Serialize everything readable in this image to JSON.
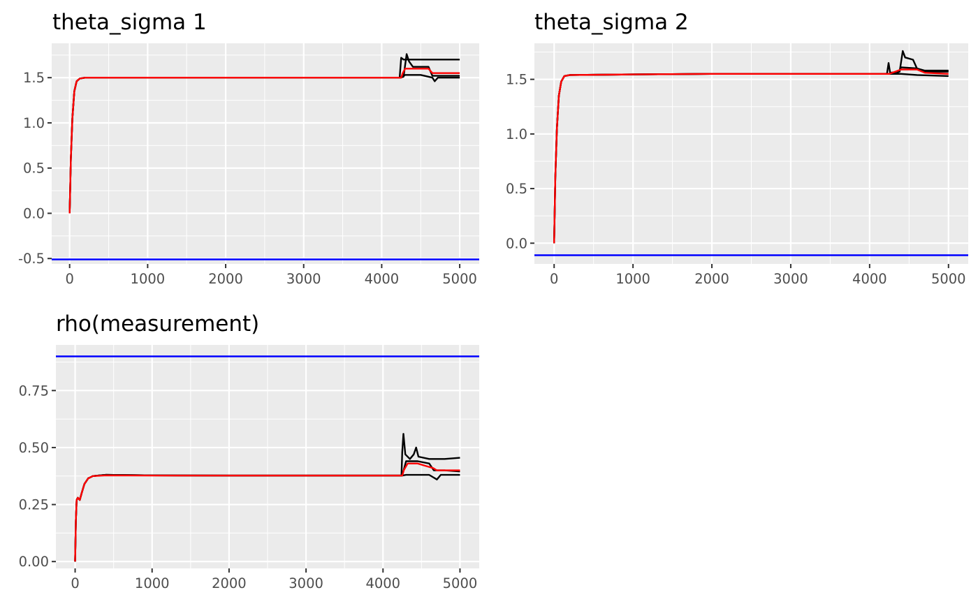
{
  "chart_data": [
    {
      "type": "line",
      "title": "theta_sigma 1",
      "xlabel": "",
      "ylabel": "",
      "xlim": [
        -230,
        5250
      ],
      "ylim": [
        -0.56,
        1.88
      ],
      "x_ticks": [
        0,
        1000,
        2000,
        3000,
        4000,
        5000
      ],
      "x_tick_labels": [
        "0",
        "1000",
        "2000",
        "3000",
        "4000",
        "5000"
      ],
      "y_ticks": [
        -0.5,
        0.0,
        0.5,
        1.0,
        1.5
      ],
      "y_tick_labels": [
        "-0.5",
        "0.0",
        "0.5",
        "1.0",
        "1.5"
      ],
      "grid": true,
      "panel_background": "#ebebeb",
      "reference_line": {
        "y": -0.51,
        "color": "#0000ff"
      },
      "series": [
        {
          "color": "#000000",
          "points": [
            [
              0,
              0.0
            ],
            [
              15,
              0.6
            ],
            [
              35,
              1.05
            ],
            [
              60,
              1.35
            ],
            [
              90,
              1.46
            ],
            [
              130,
              1.49
            ],
            [
              200,
              1.5
            ],
            [
              1000,
              1.5
            ],
            [
              2000,
              1.5
            ],
            [
              3000,
              1.5
            ],
            [
              4000,
              1.5
            ],
            [
              4230,
              1.5
            ],
            [
              4250,
              1.72
            ],
            [
              4280,
              1.7
            ],
            [
              4400,
              1.7
            ],
            [
              5000,
              1.7
            ]
          ]
        },
        {
          "color": "#000000",
          "points": [
            [
              0,
              0.0
            ],
            [
              15,
              0.6
            ],
            [
              35,
              1.05
            ],
            [
              60,
              1.35
            ],
            [
              90,
              1.46
            ],
            [
              130,
              1.49
            ],
            [
              200,
              1.5
            ],
            [
              1000,
              1.5
            ],
            [
              2000,
              1.5
            ],
            [
              3000,
              1.5
            ],
            [
              4000,
              1.5
            ],
            [
              4230,
              1.5
            ],
            [
              4280,
              1.51
            ],
            [
              4320,
              1.76
            ],
            [
              4350,
              1.68
            ],
            [
              4400,
              1.62
            ],
            [
              4600,
              1.62
            ],
            [
              4650,
              1.52
            ],
            [
              5000,
              1.52
            ]
          ]
        },
        {
          "color": "#000000",
          "points": [
            [
              0,
              0.0
            ],
            [
              15,
              0.6
            ],
            [
              35,
              1.05
            ],
            [
              60,
              1.35
            ],
            [
              90,
              1.46
            ],
            [
              130,
              1.49
            ],
            [
              200,
              1.5
            ],
            [
              1000,
              1.5
            ],
            [
              2000,
              1.5
            ],
            [
              3000,
              1.5
            ],
            [
              4000,
              1.5
            ],
            [
              4250,
              1.5
            ],
            [
              4300,
              1.53
            ],
            [
              4500,
              1.53
            ],
            [
              4650,
              1.5
            ],
            [
              4680,
              1.46
            ],
            [
              4720,
              1.5
            ],
            [
              5000,
              1.5
            ]
          ]
        },
        {
          "color": "#ff0000",
          "points": [
            [
              0,
              0.0
            ],
            [
              15,
              0.6
            ],
            [
              35,
              1.05
            ],
            [
              60,
              1.35
            ],
            [
              90,
              1.46
            ],
            [
              130,
              1.49
            ],
            [
              200,
              1.5
            ],
            [
              1000,
              1.5
            ],
            [
              2000,
              1.5
            ],
            [
              3000,
              1.5
            ],
            [
              4000,
              1.5
            ],
            [
              4250,
              1.5
            ],
            [
              4270,
              1.55
            ],
            [
              4300,
              1.6
            ],
            [
              4600,
              1.6
            ],
            [
              4650,
              1.55
            ],
            [
              5000,
              1.55
            ]
          ]
        }
      ]
    },
    {
      "type": "line",
      "title": "theta_sigma 2",
      "xlabel": "",
      "ylabel": "",
      "xlim": [
        -250,
        5250
      ],
      "ylim": [
        -0.19,
        1.83
      ],
      "x_ticks": [
        0,
        1000,
        2000,
        3000,
        4000,
        5000
      ],
      "x_tick_labels": [
        "0",
        "1000",
        "2000",
        "3000",
        "4000",
        "5000"
      ],
      "y_ticks": [
        0.0,
        0.5,
        1.0,
        1.5
      ],
      "y_tick_labels": [
        "0.0",
        "0.5",
        "1.0",
        "1.5"
      ],
      "grid": true,
      "panel_background": "#ebebeb",
      "reference_line": {
        "y": -0.11,
        "color": "#0000ff"
      },
      "series": [
        {
          "color": "#000000",
          "points": [
            [
              0,
              0.0
            ],
            [
              15,
              0.6
            ],
            [
              35,
              1.05
            ],
            [
              60,
              1.35
            ],
            [
              90,
              1.48
            ],
            [
              130,
              1.53
            ],
            [
              200,
              1.54
            ],
            [
              1000,
              1.545
            ],
            [
              2000,
              1.55
            ],
            [
              3000,
              1.55
            ],
            [
              4000,
              1.55
            ],
            [
              4220,
              1.55
            ],
            [
              4240,
              1.65
            ],
            [
              4260,
              1.56
            ],
            [
              4380,
              1.57
            ],
            [
              4420,
              1.76
            ],
            [
              4450,
              1.7
            ],
            [
              4550,
              1.68
            ],
            [
              4600,
              1.6
            ],
            [
              4700,
              1.58
            ],
            [
              5000,
              1.58
            ]
          ]
        },
        {
          "color": "#000000",
          "points": [
            [
              0,
              0.0
            ],
            [
              15,
              0.6
            ],
            [
              35,
              1.05
            ],
            [
              60,
              1.35
            ],
            [
              90,
              1.48
            ],
            [
              130,
              1.53
            ],
            [
              200,
              1.54
            ],
            [
              1000,
              1.545
            ],
            [
              2000,
              1.55
            ],
            [
              3000,
              1.55
            ],
            [
              4000,
              1.55
            ],
            [
              4350,
              1.55
            ],
            [
              4400,
              1.61
            ],
            [
              4600,
              1.6
            ],
            [
              4700,
              1.57
            ],
            [
              5000,
              1.57
            ]
          ]
        },
        {
          "color": "#000000",
          "points": [
            [
              0,
              0.0
            ],
            [
              15,
              0.6
            ],
            [
              35,
              1.05
            ],
            [
              60,
              1.35
            ],
            [
              90,
              1.48
            ],
            [
              130,
              1.53
            ],
            [
              200,
              1.54
            ],
            [
              1000,
              1.545
            ],
            [
              2000,
              1.55
            ],
            [
              3000,
              1.55
            ],
            [
              4000,
              1.55
            ],
            [
              4400,
              1.55
            ],
            [
              4600,
              1.54
            ],
            [
              5000,
              1.53
            ]
          ]
        },
        {
          "color": "#ff0000",
          "points": [
            [
              0,
              0.0
            ],
            [
              15,
              0.6
            ],
            [
              35,
              1.05
            ],
            [
              60,
              1.35
            ],
            [
              90,
              1.48
            ],
            [
              130,
              1.53
            ],
            [
              200,
              1.54
            ],
            [
              1000,
              1.545
            ],
            [
              2000,
              1.55
            ],
            [
              3000,
              1.55
            ],
            [
              4000,
              1.55
            ],
            [
              4250,
              1.55
            ],
            [
              4400,
              1.59
            ],
            [
              4600,
              1.59
            ],
            [
              4700,
              1.56
            ],
            [
              5000,
              1.55
            ]
          ]
        }
      ]
    },
    {
      "type": "line",
      "title": "rho(measurement)",
      "xlabel": "",
      "ylabel": "",
      "xlim": [
        -250,
        5250
      ],
      "ylim": [
        -0.03,
        0.95
      ],
      "x_ticks": [
        0,
        1000,
        2000,
        3000,
        4000,
        5000
      ],
      "x_tick_labels": [
        "0",
        "1000",
        "2000",
        "3000",
        "4000",
        "5000"
      ],
      "y_ticks": [
        0.0,
        0.25,
        0.5,
        0.75
      ],
      "y_tick_labels": [
        "0.00",
        "0.25",
        "0.50",
        "0.75"
      ],
      "grid": true,
      "panel_background": "#ebebeb",
      "reference_line": {
        "y": 0.9,
        "color": "#0000ff"
      },
      "series": [
        {
          "color": "#000000",
          "points": [
            [
              0,
              0.0
            ],
            [
              10,
              0.18
            ],
            [
              20,
              0.27
            ],
            [
              35,
              0.28
            ],
            [
              60,
              0.27
            ],
            [
              85,
              0.3
            ],
            [
              120,
              0.34
            ],
            [
              170,
              0.365
            ],
            [
              230,
              0.375
            ],
            [
              400,
              0.38
            ],
            [
              1000,
              0.378
            ],
            [
              2000,
              0.377
            ],
            [
              3000,
              0.377
            ],
            [
              4000,
              0.377
            ],
            [
              4240,
              0.377
            ],
            [
              4250,
              0.48
            ],
            [
              4265,
              0.56
            ],
            [
              4290,
              0.47
            ],
            [
              4350,
              0.45
            ],
            [
              4400,
              0.47
            ],
            [
              4430,
              0.5
            ],
            [
              4460,
              0.46
            ],
            [
              4600,
              0.45
            ],
            [
              4800,
              0.45
            ],
            [
              5000,
              0.455
            ]
          ]
        },
        {
          "color": "#000000",
          "points": [
            [
              0,
              0.0
            ],
            [
              10,
              0.18
            ],
            [
              20,
              0.27
            ],
            [
              35,
              0.28
            ],
            [
              60,
              0.27
            ],
            [
              85,
              0.3
            ],
            [
              120,
              0.34
            ],
            [
              170,
              0.365
            ],
            [
              230,
              0.375
            ],
            [
              400,
              0.38
            ],
            [
              1000,
              0.378
            ],
            [
              2000,
              0.377
            ],
            [
              3000,
              0.377
            ],
            [
              4000,
              0.377
            ],
            [
              4250,
              0.377
            ],
            [
              4300,
              0.44
            ],
            [
              4450,
              0.44
            ],
            [
              4600,
              0.43
            ],
            [
              4660,
              0.4
            ],
            [
              4800,
              0.4
            ],
            [
              5000,
              0.395
            ]
          ]
        },
        {
          "color": "#000000",
          "points": [
            [
              0,
              0.0
            ],
            [
              10,
              0.18
            ],
            [
              20,
              0.27
            ],
            [
              35,
              0.28
            ],
            [
              60,
              0.27
            ],
            [
              85,
              0.3
            ],
            [
              120,
              0.34
            ],
            [
              170,
              0.365
            ],
            [
              230,
              0.375
            ],
            [
              400,
              0.38
            ],
            [
              1000,
              0.378
            ],
            [
              2000,
              0.377
            ],
            [
              3000,
              0.377
            ],
            [
              4000,
              0.377
            ],
            [
              4250,
              0.377
            ],
            [
              4300,
              0.38
            ],
            [
              4600,
              0.38
            ],
            [
              4650,
              0.37
            ],
            [
              4700,
              0.36
            ],
            [
              4750,
              0.38
            ],
            [
              5000,
              0.38
            ]
          ]
        },
        {
          "color": "#ff0000",
          "points": [
            [
              0,
              0.0
            ],
            [
              10,
              0.18
            ],
            [
              20,
              0.27
            ],
            [
              35,
              0.28
            ],
            [
              60,
              0.27
            ],
            [
              85,
              0.3
            ],
            [
              120,
              0.34
            ],
            [
              170,
              0.365
            ],
            [
              230,
              0.375
            ],
            [
              400,
              0.378
            ],
            [
              1000,
              0.377
            ],
            [
              2000,
              0.377
            ],
            [
              3000,
              0.377
            ],
            [
              4000,
              0.377
            ],
            [
              4250,
              0.377
            ],
            [
              4270,
              0.4
            ],
            [
              4320,
              0.43
            ],
            [
              4450,
              0.43
            ],
            [
              4550,
              0.42
            ],
            [
              4650,
              0.41
            ],
            [
              4700,
              0.4
            ],
            [
              5000,
              0.4
            ]
          ]
        }
      ]
    }
  ]
}
